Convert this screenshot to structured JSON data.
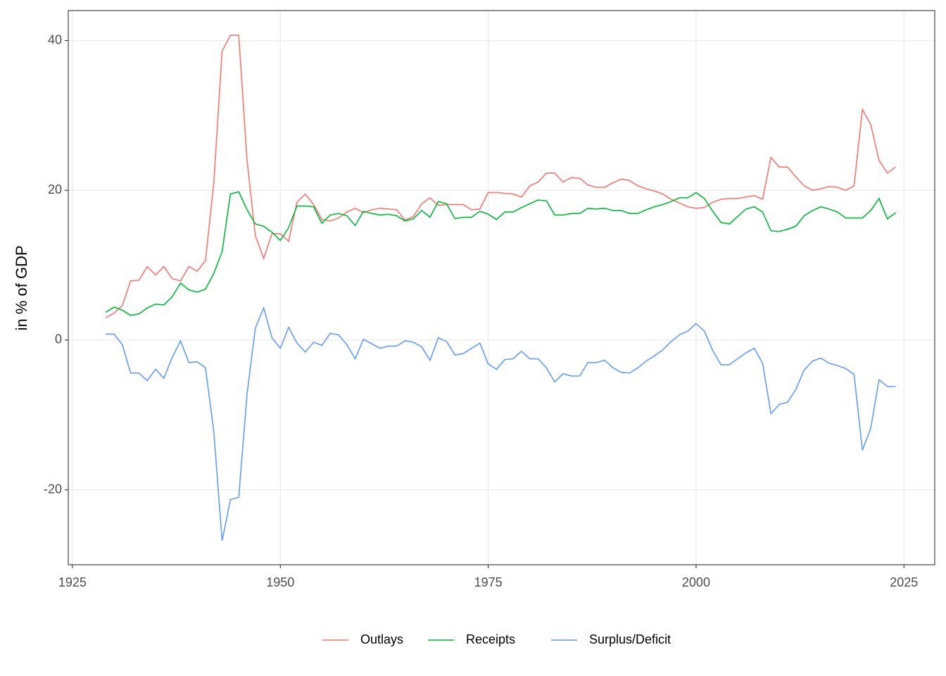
{
  "chart_data": {
    "type": "line",
    "y_label": "in % of GDP",
    "x": [
      1929,
      1930,
      1931,
      1932,
      1933,
      1934,
      1935,
      1936,
      1937,
      1938,
      1939,
      1940,
      1941,
      1942,
      1943,
      1944,
      1945,
      1946,
      1947,
      1948,
      1949,
      1950,
      1951,
      1952,
      1953,
      1954,
      1955,
      1956,
      1957,
      1958,
      1959,
      1960,
      1961,
      1962,
      1963,
      1964,
      1965,
      1966,
      1967,
      1968,
      1969,
      1970,
      1971,
      1972,
      1973,
      1974,
      1975,
      1976,
      1977,
      1978,
      1979,
      1980,
      1981,
      1982,
      1983,
      1984,
      1985,
      1986,
      1987,
      1988,
      1989,
      1990,
      1991,
      1992,
      1993,
      1994,
      1995,
      1996,
      1997,
      1998,
      1999,
      2000,
      2001,
      2002,
      2003,
      2004,
      2005,
      2006,
      2007,
      2008,
      2009,
      2010,
      2011,
      2012,
      2013,
      2014,
      2015,
      2016,
      2017,
      2018,
      2019,
      2020,
      2021,
      2022,
      2023,
      2024
    ],
    "series": [
      {
        "name": "Outlays",
        "color": "#F8766D",
        "values": [
          3.0,
          3.6,
          4.6,
          7.9,
          8.0,
          9.8,
          8.7,
          9.8,
          8.2,
          7.9,
          9.8,
          9.2,
          10.6,
          21.0,
          38.6,
          40.7,
          40.7,
          24.0,
          13.9,
          10.9,
          14.2,
          14.2,
          13.2,
          18.4,
          19.5,
          18.1,
          16.1,
          15.9,
          16.3,
          17.1,
          17.6,
          17.0,
          17.4,
          17.6,
          17.5,
          17.4,
          16.0,
          16.5,
          18.2,
          19.0,
          18.0,
          18.1,
          18.1,
          18.1,
          17.4,
          17.5,
          19.7,
          19.7,
          19.6,
          19.5,
          19.1,
          20.6,
          21.1,
          22.3,
          22.3,
          21.1,
          21.7,
          21.6,
          20.7,
          20.4,
          20.4,
          21.0,
          21.5,
          21.3,
          20.6,
          20.2,
          19.9,
          19.5,
          18.8,
          18.3,
          17.8,
          17.6,
          17.7,
          18.4,
          18.8,
          18.9,
          18.9,
          19.1,
          19.3,
          18.8,
          24.4,
          23.1,
          23.1,
          21.8,
          20.6,
          20.0,
          20.2,
          20.5,
          20.4,
          20.0,
          20.6,
          30.8,
          28.8,
          24.0,
          22.3,
          23.1
        ]
      },
      {
        "name": "Receipts",
        "color": "#00BA38",
        "values": [
          3.7,
          4.4,
          4.0,
          3.3,
          3.5,
          4.3,
          4.8,
          4.7,
          5.8,
          7.6,
          6.7,
          6.4,
          6.8,
          8.9,
          11.8,
          19.5,
          19.8,
          17.4,
          15.5,
          15.2,
          14.4,
          13.3,
          15.0,
          17.9,
          17.9,
          17.8,
          15.6,
          16.7,
          16.9,
          16.6,
          15.3,
          17.2,
          16.9,
          16.7,
          16.8,
          16.6,
          15.9,
          16.2,
          17.3,
          16.4,
          18.5,
          18.2,
          16.2,
          16.4,
          16.4,
          17.2,
          16.8,
          16.1,
          17.1,
          17.1,
          17.7,
          18.2,
          18.7,
          18.6,
          16.7,
          16.7,
          16.9,
          16.9,
          17.6,
          17.5,
          17.6,
          17.3,
          17.3,
          16.9,
          16.9,
          17.4,
          17.8,
          18.1,
          18.5,
          19.0,
          19.0,
          19.7,
          18.9,
          17.2,
          15.7,
          15.5,
          16.5,
          17.5,
          17.8,
          17.1,
          14.6,
          14.5,
          14.8,
          15.2,
          16.6,
          17.3,
          17.8,
          17.5,
          17.1,
          16.3,
          16.3,
          16.3,
          17.3,
          18.9,
          16.2,
          17.0
        ]
      },
      {
        "name": "Surplus/Deficit",
        "color": "#619CFF",
        "values": [
          0.8,
          0.8,
          -0.6,
          -4.4,
          -4.4,
          -5.4,
          -3.9,
          -5.1,
          -2.3,
          -0.1,
          -3.0,
          -2.9,
          -3.7,
          -12.2,
          -26.8,
          -21.3,
          -21.0,
          -7.2,
          1.6,
          4.3,
          0.3,
          -1.1,
          1.7,
          -0.4,
          -1.6,
          -0.3,
          -0.7,
          0.9,
          0.7,
          -0.6,
          -2.5,
          0.1,
          -0.5,
          -1.1,
          -0.8,
          -0.8,
          -0.1,
          -0.3,
          -0.9,
          -2.7,
          0.3,
          -0.2,
          -2.0,
          -1.8,
          -1.1,
          -0.4,
          -3.2,
          -3.9,
          -2.6,
          -2.5,
          -1.5,
          -2.5,
          -2.5,
          -3.7,
          -5.6,
          -4.5,
          -4.8,
          -4.8,
          -3.0,
          -3.0,
          -2.7,
          -3.7,
          -4.3,
          -4.4,
          -3.7,
          -2.8,
          -2.1,
          -1.3,
          -0.2,
          0.7,
          1.2,
          2.2,
          1.2,
          -1.4,
          -3.3,
          -3.3,
          -2.5,
          -1.7,
          -1.1,
          -3.1,
          -9.8,
          -8.6,
          -8.3,
          -6.6,
          -4.0,
          -2.8,
          -2.4,
          -3.1,
          -3.4,
          -3.8,
          -4.6,
          -14.7,
          -11.8,
          -5.3,
          -6.2,
          -6.2
        ]
      }
    ],
    "xlim": [
      1924.5,
      2028.7
    ],
    "ylim": [
      -30.0,
      44.0
    ],
    "xticks": [
      1925,
      1950,
      1975,
      2000,
      2025
    ],
    "yticks": [
      -20,
      0,
      20,
      40
    ],
    "grid": true,
    "legend": "bottom"
  }
}
